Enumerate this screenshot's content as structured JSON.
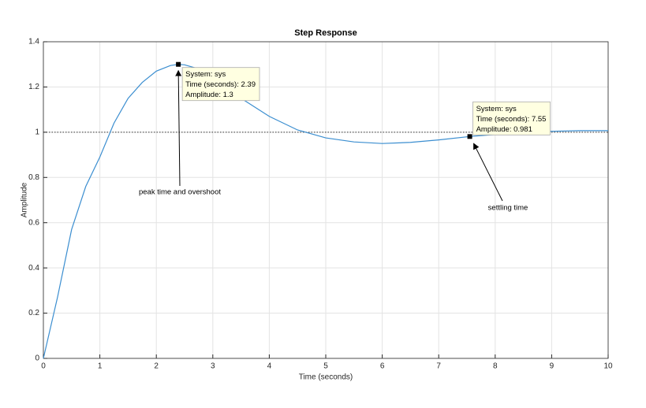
{
  "chart_data": {
    "type": "line",
    "title": "Step Response",
    "x_label": "Time (seconds)",
    "y_label": "Amplitude",
    "x": [
      0,
      0.25,
      0.5,
      0.75,
      1,
      1.25,
      1.5,
      1.75,
      2,
      2.25,
      2.39,
      2.5,
      2.75,
      3,
      3.5,
      4,
      4.5,
      5,
      5.5,
      6,
      6.5,
      7,
      7.55,
      8,
      8.5,
      9,
      9.5,
      10
    ],
    "values": [
      0,
      0.27,
      0.57,
      0.76,
      0.89,
      1.04,
      1.15,
      1.22,
      1.27,
      1.295,
      1.3,
      1.298,
      1.28,
      1.24,
      1.15,
      1.07,
      1.01,
      0.975,
      0.957,
      0.95,
      0.955,
      0.966,
      0.981,
      0.99,
      0.998,
      1.004,
      1.007,
      1.007
    ],
    "color": "#3b8ed0",
    "xlim": [
      0,
      10
    ],
    "xticks": [
      0,
      1,
      2,
      3,
      4,
      5,
      6,
      7,
      8,
      9,
      10
    ],
    "ylim": [
      0,
      1.4
    ],
    "yticks": [
      0,
      0.2,
      0.4,
      0.6,
      0.8,
      1,
      1.2,
      1.4
    ],
    "grid": true,
    "reference_line": 1,
    "datatips": [
      {
        "x": 2.39,
        "y": 1.3,
        "lines": [
          "System: sys",
          "Time (seconds): 2.39",
          "Amplitude: 1.3"
        ]
      },
      {
        "x": 7.55,
        "y": 0.981,
        "lines": [
          "System: sys",
          "Time (seconds): 7.55",
          "Amplitude: 0.981"
        ]
      }
    ],
    "annotations": [
      "peak time and overshoot",
      "settling time"
    ]
  }
}
